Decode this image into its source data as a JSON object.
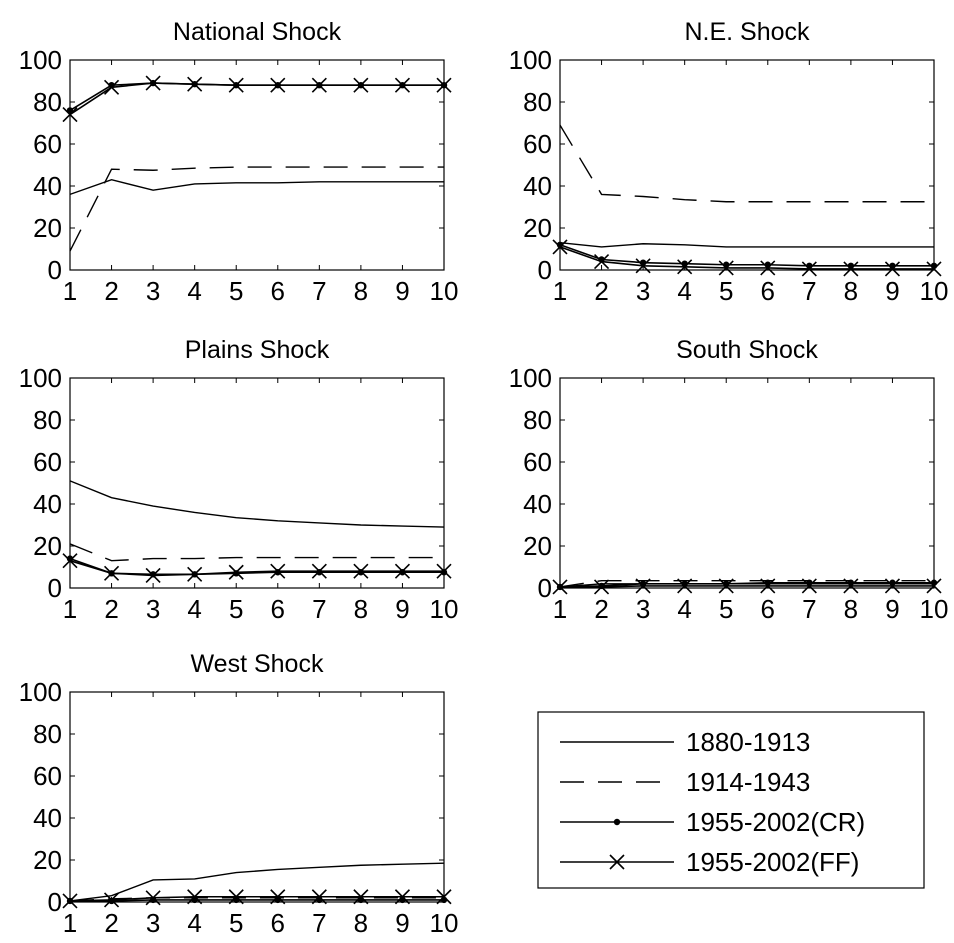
{
  "chart_data": {
    "type": "line",
    "x": [
      1,
      2,
      3,
      4,
      5,
      6,
      7,
      8,
      9,
      10
    ],
    "xlim": [
      1,
      10
    ],
    "ylim": [
      0,
      100
    ],
    "yticks": [
      0,
      20,
      40,
      60,
      80,
      100
    ],
    "xticks": [
      1,
      2,
      3,
      4,
      5,
      6,
      7,
      8,
      9,
      10
    ],
    "grid": false,
    "legend": {
      "placement": "bottom-right",
      "entries": [
        {
          "label": "1880-1913",
          "style": "solid",
          "marker": "none"
        },
        {
          "label": "1914-1943",
          "style": "dashed",
          "marker": "none"
        },
        {
          "label": "1955-2002(CR)",
          "style": "solid",
          "marker": "dot"
        },
        {
          "label": "1955-2002(FF)",
          "style": "solid",
          "marker": "x"
        }
      ]
    },
    "panels": [
      {
        "title": "National Shock",
        "series": [
          {
            "name": "1880-1913",
            "values": [
              36,
              43,
              38,
              41,
              41.5,
              41.5,
              42,
              42,
              42,
              42
            ]
          },
          {
            "name": "1914-1943",
            "values": [
              9,
              48,
              47.5,
              48.5,
              49,
              49,
              49,
              49,
              49,
              49
            ]
          },
          {
            "name": "1955-2002(CR)",
            "values": [
              76,
              88,
              89,
              88.5,
              88,
              88,
              88,
              88,
              88,
              88
            ]
          },
          {
            "name": "1955-2002(FF)",
            "values": [
              74,
              87,
              89,
              88.5,
              88,
              88,
              88,
              88,
              88,
              88
            ]
          }
        ]
      },
      {
        "title": "N.E. Shock",
        "series": [
          {
            "name": "1880-1913",
            "values": [
              13,
              11,
              12.5,
              12,
              11,
              11,
              11,
              11,
              11,
              11
            ]
          },
          {
            "name": "1914-1943",
            "values": [
              69,
              36,
              35,
              33.5,
              32.5,
              32.5,
              32.5,
              32.5,
              32.5,
              32.5
            ]
          },
          {
            "name": "1955-2002(CR)",
            "values": [
              12,
              5,
              3.5,
              3,
              2.5,
              2.5,
              2,
              2,
              2,
              2
            ]
          },
          {
            "name": "1955-2002(FF)",
            "values": [
              11,
              4,
              2,
              1.5,
              1,
              1,
              0.5,
              0.5,
              0.5,
              0.5
            ]
          }
        ]
      },
      {
        "title": "Plains Shock",
        "series": [
          {
            "name": "1880-1913",
            "values": [
              51,
              43,
              39,
              36,
              33.5,
              32,
              31,
              30,
              29.5,
              29
            ]
          },
          {
            "name": "1914-1943",
            "values": [
              21,
              13,
              14,
              14,
              14.5,
              14.5,
              14.5,
              14.5,
              14.5,
              14.5
            ]
          },
          {
            "name": "1955-2002(CR)",
            "values": [
              14,
              7,
              6.5,
              6.5,
              7,
              7.5,
              7.5,
              7.5,
              7.5,
              7.5
            ]
          },
          {
            "name": "1955-2002(FF)",
            "values": [
              13,
              7,
              6,
              6.5,
              7.5,
              8,
              8,
              8,
              8,
              8
            ]
          }
        ]
      },
      {
        "title": "South Shock",
        "series": [
          {
            "name": "1880-1913",
            "values": [
              0.5,
              2,
              2,
              2,
              2,
              2,
              2,
              2,
              2,
              2
            ]
          },
          {
            "name": "1914-1943",
            "values": [
              0.5,
              3.5,
              3.5,
              3.5,
              3.5,
              3.5,
              3.5,
              3.5,
              3.5,
              3.5
            ]
          },
          {
            "name": "1955-2002(CR)",
            "values": [
              0.5,
              1,
              2,
              2,
              2,
              2.5,
              2.5,
              2.5,
              2.5,
              2.5
            ]
          },
          {
            "name": "1955-2002(FF)",
            "values": [
              0.5,
              0.5,
              1,
              1,
              1,
              1,
              1,
              1,
              1,
              1
            ]
          }
        ]
      },
      {
        "title": "West Shock",
        "series": [
          {
            "name": "1880-1913",
            "values": [
              0.5,
              3,
              10.5,
              11,
              14,
              15.5,
              16.5,
              17.5,
              18,
              18.5
            ]
          },
          {
            "name": "1914-1943",
            "values": [
              0.5,
              1.5,
              2,
              2,
              2,
              2,
              2,
              2,
              2,
              2
            ]
          },
          {
            "name": "1955-2002(CR)",
            "values": [
              0.5,
              0.5,
              1,
              1,
              1,
              1,
              1,
              1,
              1,
              1
            ]
          },
          {
            "name": "1955-2002(FF)",
            "values": [
              0.5,
              1,
              2,
              2.5,
              2.5,
              2.5,
              2.5,
              2.5,
              2.5,
              2.5
            ]
          }
        ]
      }
    ]
  }
}
